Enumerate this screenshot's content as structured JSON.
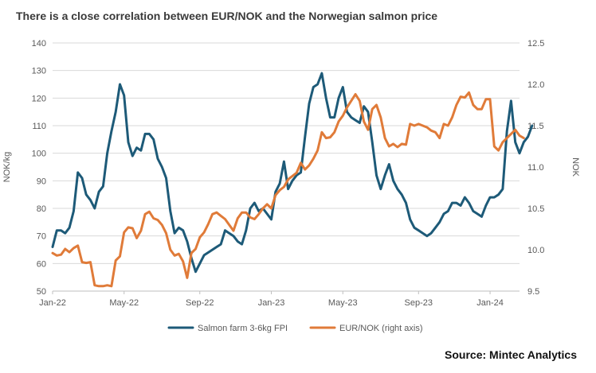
{
  "title": "There is a close correlation between  EUR/NOK and the Norwegian salmon price",
  "source": "Source: Mintec Analytics",
  "colors": {
    "salmon": "#1d5a78",
    "eurnok": "#e07b39",
    "grid": "#d9d9d9",
    "axis_text": "#595959"
  },
  "chart_data": {
    "type": "line",
    "title": "There is a close correlation between  EUR/NOK and the Norwegian salmon price",
    "xlabel": "",
    "ylabel": "NOK/kg",
    "ylabel_right": "NOK",
    "ylim": [
      50,
      140
    ],
    "ylim_right": [
      9.5,
      12.5
    ],
    "yticks": [
      50,
      60,
      70,
      80,
      90,
      100,
      110,
      120,
      130,
      140
    ],
    "yticks_right": [
      "9.5",
      "10.0",
      "10.5",
      "11.0",
      "11.5",
      "12.0",
      "12.5"
    ],
    "x_tick_labels": [
      "Jan-22",
      "May-22",
      "Sep-22",
      "Jan-23",
      "May-23",
      "Sep-23",
      "Jan-24"
    ],
    "x_tick_weeks": [
      0,
      17,
      35,
      52,
      69,
      87,
      104
    ],
    "grid": true,
    "legend_position": "bottom",
    "series": [
      {
        "name": "Salmon farm 3-6kg FPI",
        "axis": "left",
        "color": "#1d5a78",
        "values": [
          66,
          72,
          72,
          71,
          73,
          79,
          93,
          91,
          85,
          83,
          80,
          86,
          88,
          100,
          108,
          115,
          125,
          121,
          104,
          99,
          102,
          101,
          107,
          107,
          105,
          98,
          95,
          91,
          79,
          71,
          73,
          72,
          68,
          62,
          57,
          60,
          63,
          64,
          65,
          66,
          67,
          72,
          71,
          70,
          68,
          67,
          72,
          80,
          82,
          79,
          80,
          78,
          76,
          86,
          89,
          97,
          87,
          90,
          92,
          93,
          106,
          118,
          124,
          125,
          129,
          120,
          113,
          113,
          120,
          124,
          115,
          113,
          112,
          111,
          117,
          115,
          104,
          92,
          87,
          92,
          96,
          90,
          87,
          85,
          82,
          76,
          73,
          72,
          71,
          70,
          71,
          73,
          75,
          78,
          79,
          82,
          82,
          81,
          84,
          82,
          79,
          78,
          77,
          81,
          84,
          84,
          85,
          87,
          108,
          119,
          104,
          100,
          104,
          106,
          110
        ]
      },
      {
        "name": "EUR/NOK (right axis)",
        "axis": "right",
        "color": "#e07b39",
        "values": [
          9.96,
          9.93,
          9.94,
          10.01,
          9.97,
          10.02,
          10.05,
          9.85,
          9.84,
          9.85,
          9.57,
          9.56,
          9.56,
          9.57,
          9.56,
          9.87,
          9.92,
          10.21,
          10.27,
          10.26,
          10.14,
          10.23,
          10.43,
          10.46,
          10.38,
          10.36,
          10.3,
          10.2,
          10.0,
          9.93,
          9.95,
          9.86,
          9.66,
          9.96,
          10.01,
          10.15,
          10.21,
          10.31,
          10.43,
          10.45,
          10.41,
          10.37,
          10.3,
          10.23,
          10.38,
          10.45,
          10.45,
          10.39,
          10.37,
          10.43,
          10.5,
          10.55,
          10.5,
          10.66,
          10.72,
          10.76,
          10.85,
          10.89,
          10.93,
          11.05,
          10.97,
          11.02,
          11.1,
          11.2,
          11.42,
          11.35,
          11.36,
          11.42,
          11.55,
          11.62,
          11.72,
          11.8,
          11.88,
          11.8,
          11.55,
          11.45,
          11.7,
          11.75,
          11.6,
          11.35,
          11.25,
          11.28,
          11.24,
          11.28,
          11.27,
          11.52,
          11.5,
          11.52,
          11.5,
          11.48,
          11.44,
          11.42,
          11.35,
          11.52,
          11.5,
          11.6,
          11.75,
          11.85,
          11.84,
          11.9,
          11.75,
          11.7,
          11.7,
          11.82,
          11.82,
          11.25,
          11.2,
          11.3,
          11.35,
          11.4,
          11.45,
          11.38,
          11.35
        ]
      }
    ]
  }
}
